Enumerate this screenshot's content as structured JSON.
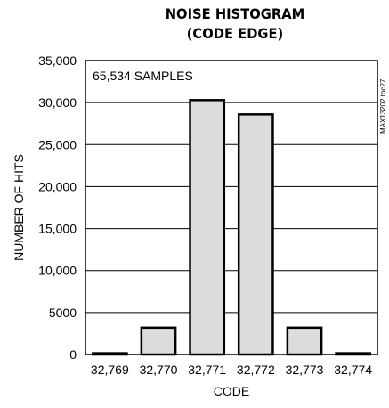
{
  "chart_data": {
    "type": "bar",
    "title_line1": "NOISE HISTOGRAM",
    "title_line2": "(CODE EDGE)",
    "xlabel": "CODE",
    "ylabel": "NUMBER OF HITS",
    "annotation": "65,534 SAMPLES",
    "figure_code": "MAX13202 toc27",
    "categories": [
      "32,769",
      "32,770",
      "32,771",
      "32,772",
      "32,773",
      "32,774"
    ],
    "values": [
      150,
      3200,
      30300,
      28600,
      3200,
      150
    ],
    "ylim": [
      0,
      35000
    ],
    "yticks": [
      0,
      5000,
      10000,
      15000,
      20000,
      25000,
      30000,
      35000
    ],
    "ytick_labels": [
      "0",
      "5000",
      "10,000",
      "15,000",
      "20,000",
      "25,000",
      "30,000",
      "35,000"
    ],
    "grid": true,
    "bar_fill": "#dcdcdc",
    "bar_stroke": "#000000"
  }
}
